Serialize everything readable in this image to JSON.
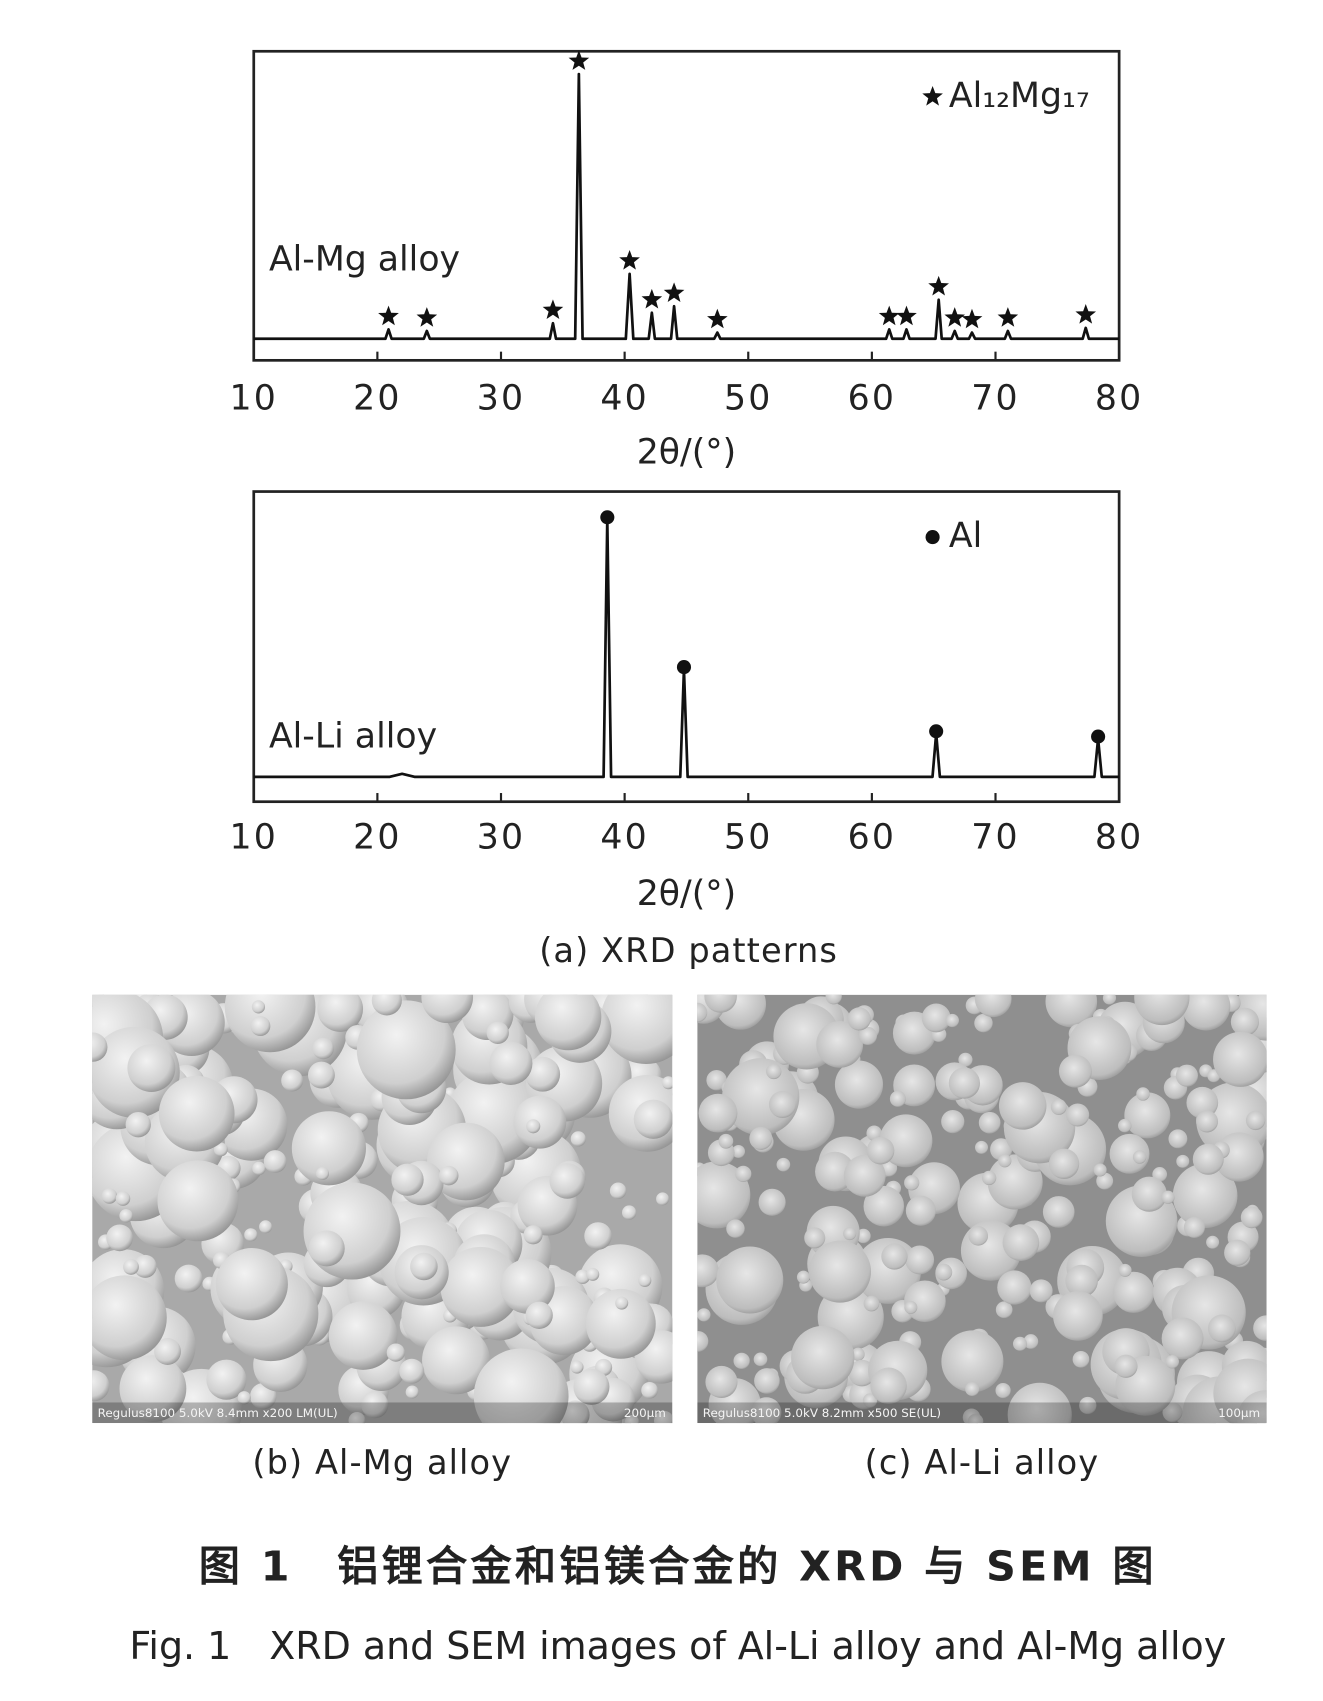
{
  "chart_data": [
    {
      "type": "line",
      "x": [
        10,
        20.65,
        20.9,
        21.15,
        23.75,
        24.0,
        24.25,
        33.95,
        34.2,
        34.45,
        36.0,
        36.3,
        36.6,
        40.1,
        40.4,
        40.7,
        41.95,
        42.2,
        42.45,
        43.75,
        44.0,
        44.25,
        47.25,
        47.5,
        47.75,
        61.15,
        61.4,
        61.65,
        62.55,
        62.8,
        63.05,
        65.15,
        65.4,
        65.65,
        66.45,
        66.7,
        66.95,
        67.85,
        68.1,
        68.35,
        70.75,
        71.0,
        71.25,
        77.05,
        77.3,
        77.55,
        80
      ],
      "series": [
        {
          "name": "Al-Mg alloy",
          "color": "#111111",
          "values": [
            7,
            7,
            10,
            7,
            7,
            9.5,
            7,
            7,
            12,
            7,
            7,
            92.6,
            7,
            7,
            28,
            7,
            7,
            15.4,
            7,
            7,
            17.5,
            7,
            7,
            9,
            7,
            7,
            10,
            7,
            7,
            10,
            7,
            7,
            19.6,
            7,
            7,
            9.5,
            7,
            7,
            9,
            7,
            7,
            9.5,
            7,
            7,
            10.5,
            7,
            7
          ]
        }
      ],
      "peaks": {
        "name": "Al₁₂Mg₁₇",
        "marker": "star",
        "color": "#111111",
        "x": [
          20.9,
          24.0,
          34.2,
          36.3,
          40.4,
          42.2,
          44.0,
          47.5,
          61.4,
          62.8,
          65.4,
          66.7,
          68.1,
          71.0,
          77.3
        ],
        "values": [
          10,
          9.5,
          12,
          92.6,
          28,
          15.4,
          17.5,
          9,
          10,
          10,
          19.6,
          9.5,
          9,
          9.5,
          10.5
        ]
      },
      "legend": "upper right",
      "xlim": [
        10,
        80
      ],
      "xticks": [
        10,
        20,
        30,
        40,
        50,
        60,
        70,
        80
      ],
      "ylim": [
        0,
        100
      ],
      "x_label": "2θ/(°)"
    },
    {
      "type": "line",
      "x": [
        10,
        21,
        22,
        23,
        38.3,
        38.6,
        38.9,
        44.5,
        44.8,
        45.1,
        64.9,
        65.2,
        65.5,
        78.0,
        78.3,
        78.6,
        80
      ],
      "series": [
        {
          "name": "Al-Li alloy",
          "color": "#111111",
          "values": [
            8,
            8,
            9,
            8,
            8,
            91,
            8,
            8,
            42.7,
            8,
            8,
            22,
            8,
            8,
            20.3,
            8,
            8
          ]
        }
      ],
      "peaks": {
        "name": "Al",
        "marker": "circle",
        "color": "#111111",
        "x": [
          38.6,
          44.8,
          65.2,
          78.3
        ],
        "values": [
          91,
          42.7,
          22,
          20.3
        ]
      },
      "legend": "upper right",
      "xlim": [
        10,
        80
      ],
      "xticks": [
        10,
        20,
        30,
        40,
        50,
        60,
        70,
        80
      ],
      "ylim": [
        0,
        100
      ],
      "x_label": "2θ/(°)"
    }
  ],
  "caption_a": "(a) XRD patterns",
  "images": [
    {
      "overlay": "Regulus8100 5.0kV 8.4mm x200 LM(UL)",
      "scale_bar": "200μm",
      "caption": "(b) Al-Mg alloy"
    },
    {
      "overlay": "Regulus8100 5.0kV 8.2mm x500 SE(UL)",
      "scale_bar": "100μm",
      "caption": "(c) Al-Li alloy"
    }
  ],
  "figure_title_cn": "图 1　铝锂合金和铝镁合金的 XRD 与 SEM 图",
  "figure_title_en": "Fig. 1　XRD and SEM images of Al-Li alloy and Al-Mg alloy"
}
